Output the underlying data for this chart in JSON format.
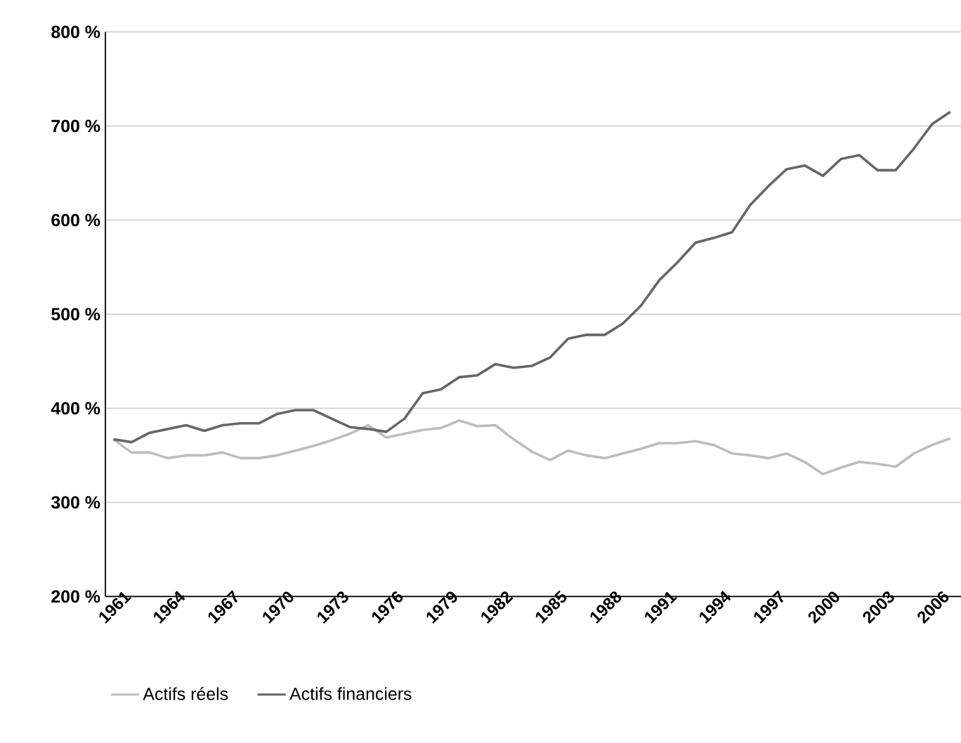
{
  "chart_data": {
    "type": "line",
    "categories": [
      "1961",
      null,
      null,
      "1964",
      null,
      null,
      "1967",
      null,
      null,
      "1970",
      null,
      null,
      "1973",
      null,
      null,
      "1976",
      null,
      null,
      "1979",
      null,
      null,
      "1982",
      null,
      null,
      "1985",
      null,
      null,
      "1988",
      null,
      null,
      "1991",
      null,
      null,
      "1994",
      null,
      null,
      "1997",
      null,
      null,
      "2000",
      null,
      null,
      "2003",
      null,
      null,
      "2006",
      null
    ],
    "series": [
      {
        "name": "Actifs réels",
        "color": "#bdbdbd",
        "values": [
          367,
          353,
          353,
          347,
          350,
          350,
          353,
          347,
          347,
          350,
          355,
          360,
          366,
          373,
          382,
          369,
          373,
          377,
          379,
          387,
          381,
          382,
          367,
          354,
          345,
          355,
          350,
          347,
          352,
          357,
          363,
          363,
          365,
          361,
          352,
          350,
          347,
          352,
          343,
          330,
          337,
          343,
          341,
          338,
          352,
          361,
          368
        ]
      },
      {
        "name": "Actifs financiers",
        "color": "#666666",
        "values": [
          367,
          364,
          374,
          378,
          382,
          376,
          382,
          384,
          384,
          394,
          398,
          398,
          389,
          380,
          378,
          375,
          389,
          416,
          420,
          433,
          435,
          447,
          443,
          445,
          454,
          474,
          478,
          478,
          490,
          509,
          536,
          555,
          576,
          581,
          587,
          616,
          636,
          654,
          658,
          647,
          665,
          669,
          653,
          653,
          676,
          702,
          715
        ]
      }
    ],
    "ylim": [
      200,
      800
    ],
    "yticks": [
      {
        "value": 200,
        "label": "200 %"
      },
      {
        "value": 300,
        "label": "300 %"
      },
      {
        "value": 400,
        "label": "400 %"
      },
      {
        "value": 500,
        "label": "500 %"
      },
      {
        "value": 600,
        "label": "600 %"
      },
      {
        "value": 700,
        "label": "700 %"
      },
      {
        "value": 800,
        "label": "800 %"
      }
    ],
    "grid": "y",
    "legend": "bottom"
  }
}
